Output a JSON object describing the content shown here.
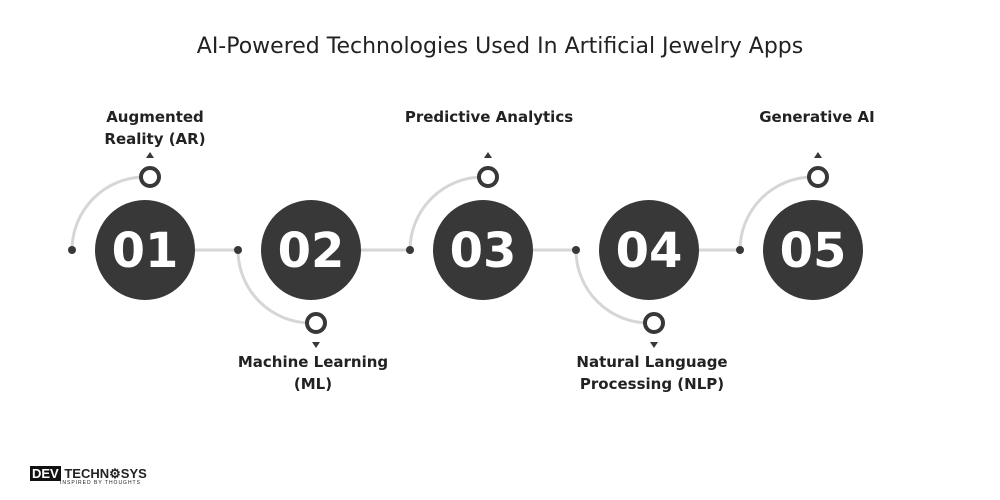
{
  "title": "AI-Powered Technologies Used In Artificial Jewelry Apps",
  "steps": [
    {
      "number": "01",
      "label": "Augmented Reality (AR)",
      "position": "top"
    },
    {
      "number": "02",
      "label": "Machine Learning (ML)",
      "position": "bottom"
    },
    {
      "number": "03",
      "label": "Predictive Analytics",
      "position": "top"
    },
    {
      "number": "04",
      "label": "Natural Language Processing (NLP)",
      "position": "bottom"
    },
    {
      "number": "05",
      "label": "Generative AI",
      "position": "top"
    }
  ],
  "colors": {
    "circle": "#383838",
    "arc": "#d6d6d6",
    "text": "#222222"
  },
  "logo": {
    "brand": "DEV TECHNOSYS",
    "tagline": "INSPIRED BY THOUGHTS"
  }
}
